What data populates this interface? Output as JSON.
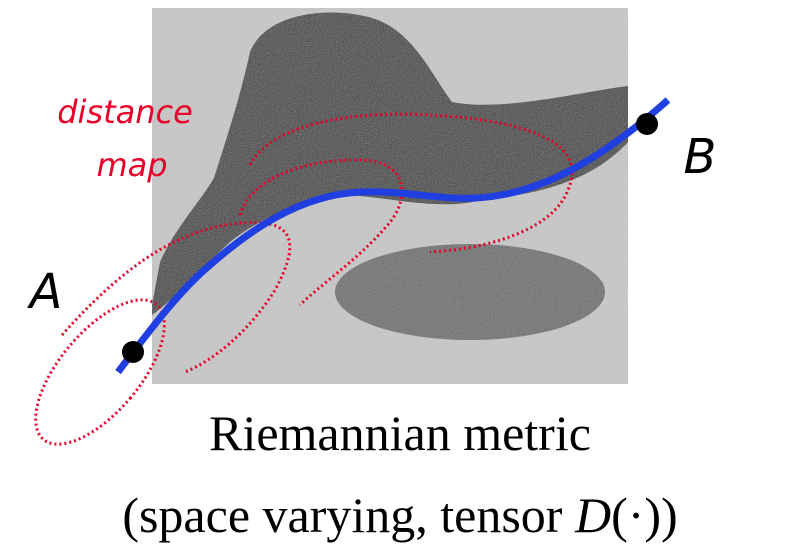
{
  "labels": {
    "distance_map": [
      "distance",
      "map"
    ],
    "point_a": "A",
    "point_b": "B"
  },
  "caption": {
    "line1": "Riemannian metric",
    "line2": [
      "(space varying, tensor ",
      "D",
      "(·))"
    ]
  }
}
